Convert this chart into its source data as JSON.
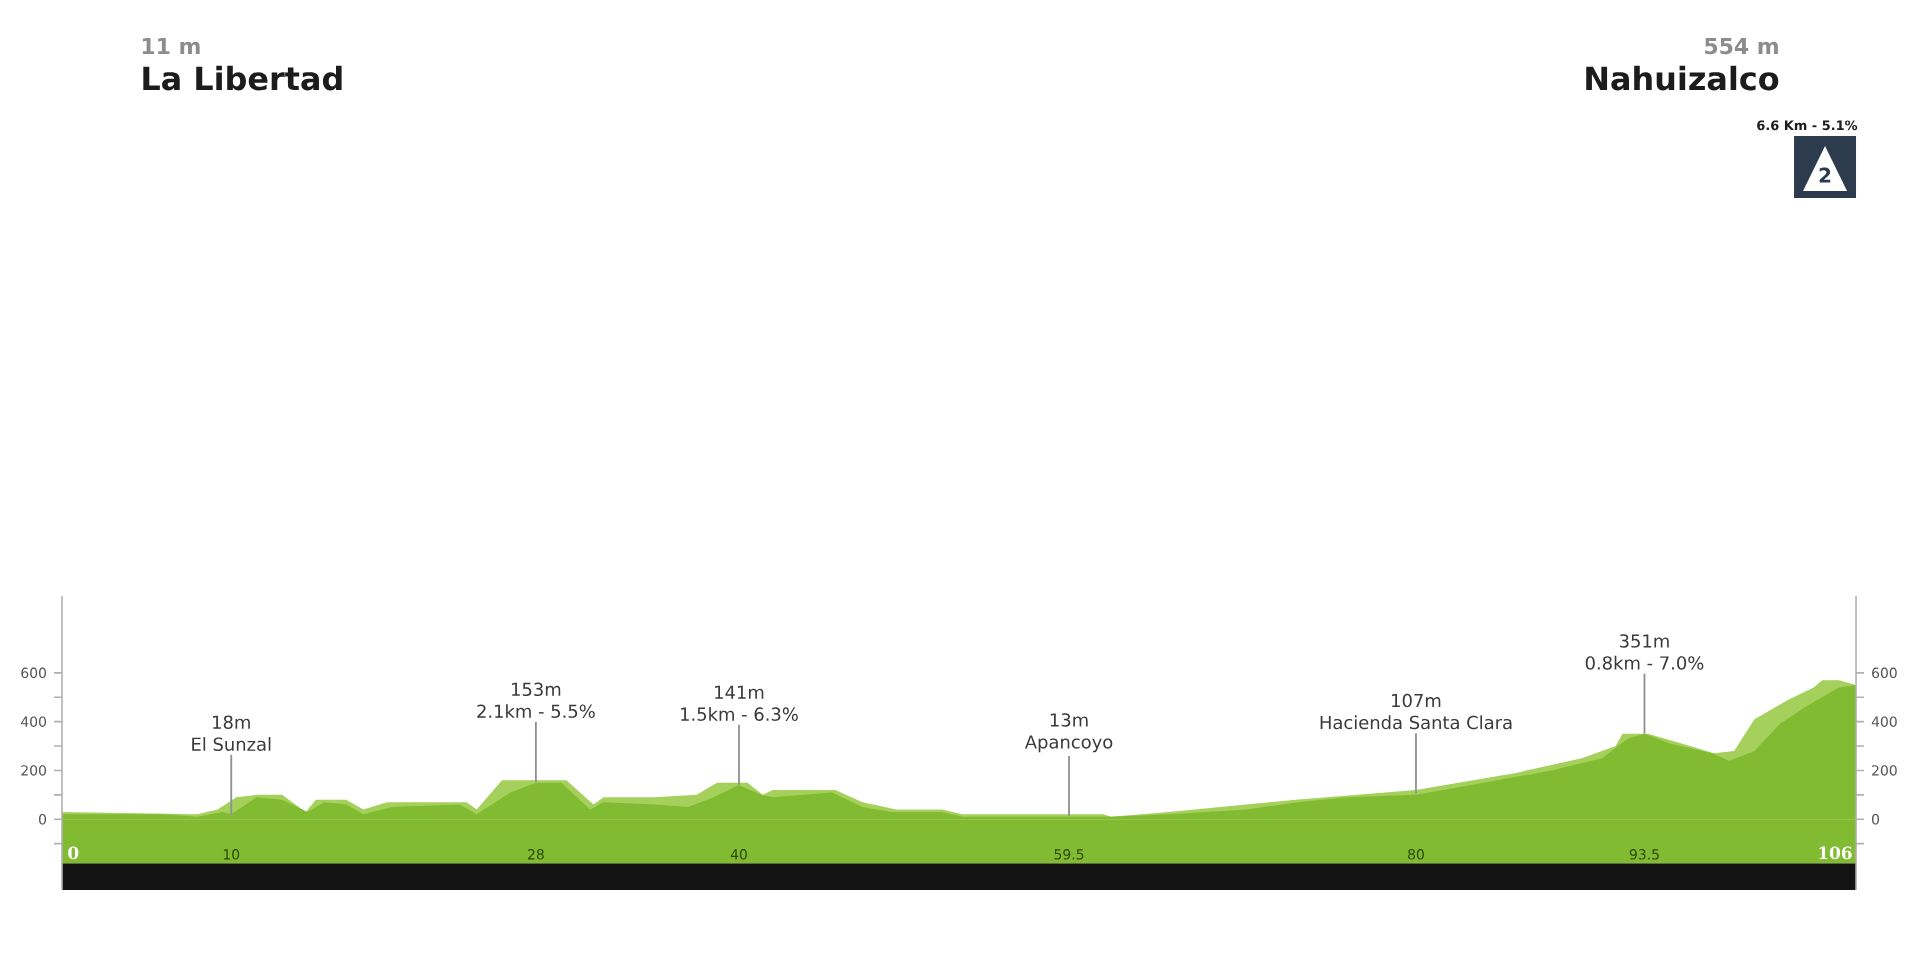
{
  "chart_data": {
    "type": "area",
    "series": [
      {
        "color": "#a4d05b",
        "x": [
          0,
          8,
          9.2,
          10.3,
          11.5,
          13,
          14.4,
          15,
          16.8,
          17.8,
          19.2,
          23.9,
          24.5,
          26,
          29.8,
          31.4,
          32,
          35,
          37.5,
          38.7,
          40.5,
          41.4,
          42,
          45.7,
          47.3,
          49.3,
          52,
          53.2,
          61.5,
          62,
          65.4,
          72.9,
          80,
          85.9,
          89.8,
          91.8,
          92.2,
          93.7,
          95.7,
          97.6,
          98.8,
          100,
          102,
          103.5,
          104,
          105,
          106
        ],
        "values": [
          30,
          20,
          40,
          90,
          100,
          100,
          30,
          80,
          80,
          40,
          70,
          70,
          40,
          160,
          160,
          60,
          90,
          90,
          100,
          150,
          150,
          100,
          120,
          120,
          70,
          40,
          40,
          20,
          20,
          10,
          30,
          80,
          120,
          190,
          250,
          300,
          350,
          350,
          310,
          270,
          280,
          410,
          490,
          540,
          570,
          570,
          550
        ]
      },
      {
        "color": "#80bb31",
        "x": [
          0,
          3,
          6,
          8,
          9.5,
          10,
          11.5,
          13,
          14.5,
          15.5,
          16.8,
          17.8,
          19.5,
          23.5,
          24.5,
          26.5,
          28,
          29.5,
          31.2,
          32,
          35,
          37,
          38.5,
          40,
          41.3,
          42,
          45.5,
          47.3,
          49,
          52,
          53.2,
          59.5,
          62,
          65.5,
          70,
          73,
          76,
          80,
          84,
          88,
          91,
          92.5,
          93.5,
          95,
          97.5,
          98.5,
          100,
          101.5,
          103,
          105,
          106
        ],
        "values": [
          20,
          20,
          20,
          10,
          30,
          20,
          90,
          80,
          30,
          70,
          60,
          20,
          50,
          60,
          20,
          110,
          150,
          150,
          40,
          70,
          60,
          50,
          90,
          140,
          100,
          90,
          110,
          50,
          30,
          30,
          10,
          10,
          10,
          20,
          40,
          70,
          90,
          100,
          150,
          200,
          250,
          330,
          350,
          310,
          270,
          240,
          280,
          390,
          460,
          540,
          550
        ]
      }
    ],
    "xlim": [
      0,
      106
    ],
    "xticks": [
      10,
      28,
      40,
      59.5,
      80,
      93.5
    ],
    "ylim": [
      -290,
      915
    ],
    "yticks": [
      {
        "value": -100,
        "label": null
      },
      0,
      {
        "value": 100,
        "label": null
      },
      200,
      {
        "value": 300,
        "label": null
      },
      400,
      {
        "value": 500,
        "label": null
      },
      600
    ],
    "y2lim": [
      -290,
      915
    ],
    "y2ticks": [
      {
        "value": -100,
        "label": null
      },
      0,
      {
        "value": 100,
        "label": null
      },
      200,
      {
        "value": 300,
        "label": null
      },
      400,
      {
        "value": 500,
        "label": null
      },
      600
    ],
    "bands": [
      {
        "axis": "y",
        "from": -290,
        "to": -180,
        "color": "#141414"
      },
      {
        "axis": "y",
        "from": -180,
        "to": 0,
        "color": "#80bb31"
      }
    ],
    "annotations": [
      "11 m",
      "La Libertad",
      "554 m",
      "Nahuizalco",
      "6.6 Km - 5.1%",
      "2",
      "0",
      "106",
      "18m",
      {
        "text": "El Sunzal",
        "x": 10,
        "y": 18
      },
      "153m",
      {
        "text": "2.1km - 5.5%",
        "x": 28,
        "y": 153
      },
      "141m",
      {
        "text": "1.5km - 6.3%",
        "x": 40,
        "y": 141
      },
      "13m",
      {
        "text": "Apancoyo",
        "x": 59.5,
        "y": 13
      },
      "107m",
      {
        "text": "Hacienda Santa Clara",
        "x": 80,
        "y": 107
      },
      "351m",
      {
        "text": "0.8km - 7.0%",
        "x": 93.5,
        "y": 351
      }
    ]
  }
}
